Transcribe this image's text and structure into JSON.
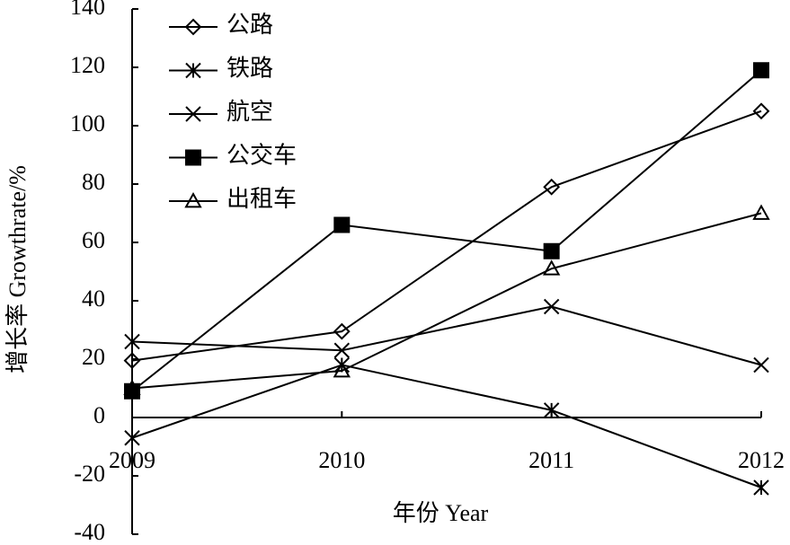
{
  "chart_data": {
    "type": "line",
    "x_label": "年份 Year",
    "y_label": "增长率 Growthrate/%",
    "categories": [
      "2009",
      "2010",
      "2011",
      "2012"
    ],
    "series": [
      {
        "name": "公路",
        "color": "#000000",
        "marker": "diamond",
        "values": [
          19.5,
          29.5,
          79,
          105
        ]
      },
      {
        "name": "铁路",
        "color": "#000000",
        "marker": "asterisk",
        "values": [
          -7,
          18,
          2.5,
          -24
        ]
      },
      {
        "name": "航空",
        "color": "#000000",
        "marker": "x",
        "values": [
          26,
          23,
          38,
          18
        ]
      },
      {
        "name": "公交车",
        "color": "#000000",
        "marker": "square",
        "values": [
          9,
          66,
          57,
          119
        ]
      },
      {
        "name": "出租车",
        "color": "#000000",
        "marker": "triangle",
        "values": [
          10,
          16,
          51,
          70
        ]
      }
    ],
    "ylim": [
      -40,
      140
    ],
    "yticks": [
      -40,
      -20,
      0,
      20,
      40,
      60,
      80,
      100,
      120,
      140
    ],
    "grid": false,
    "legend": "upper left"
  }
}
